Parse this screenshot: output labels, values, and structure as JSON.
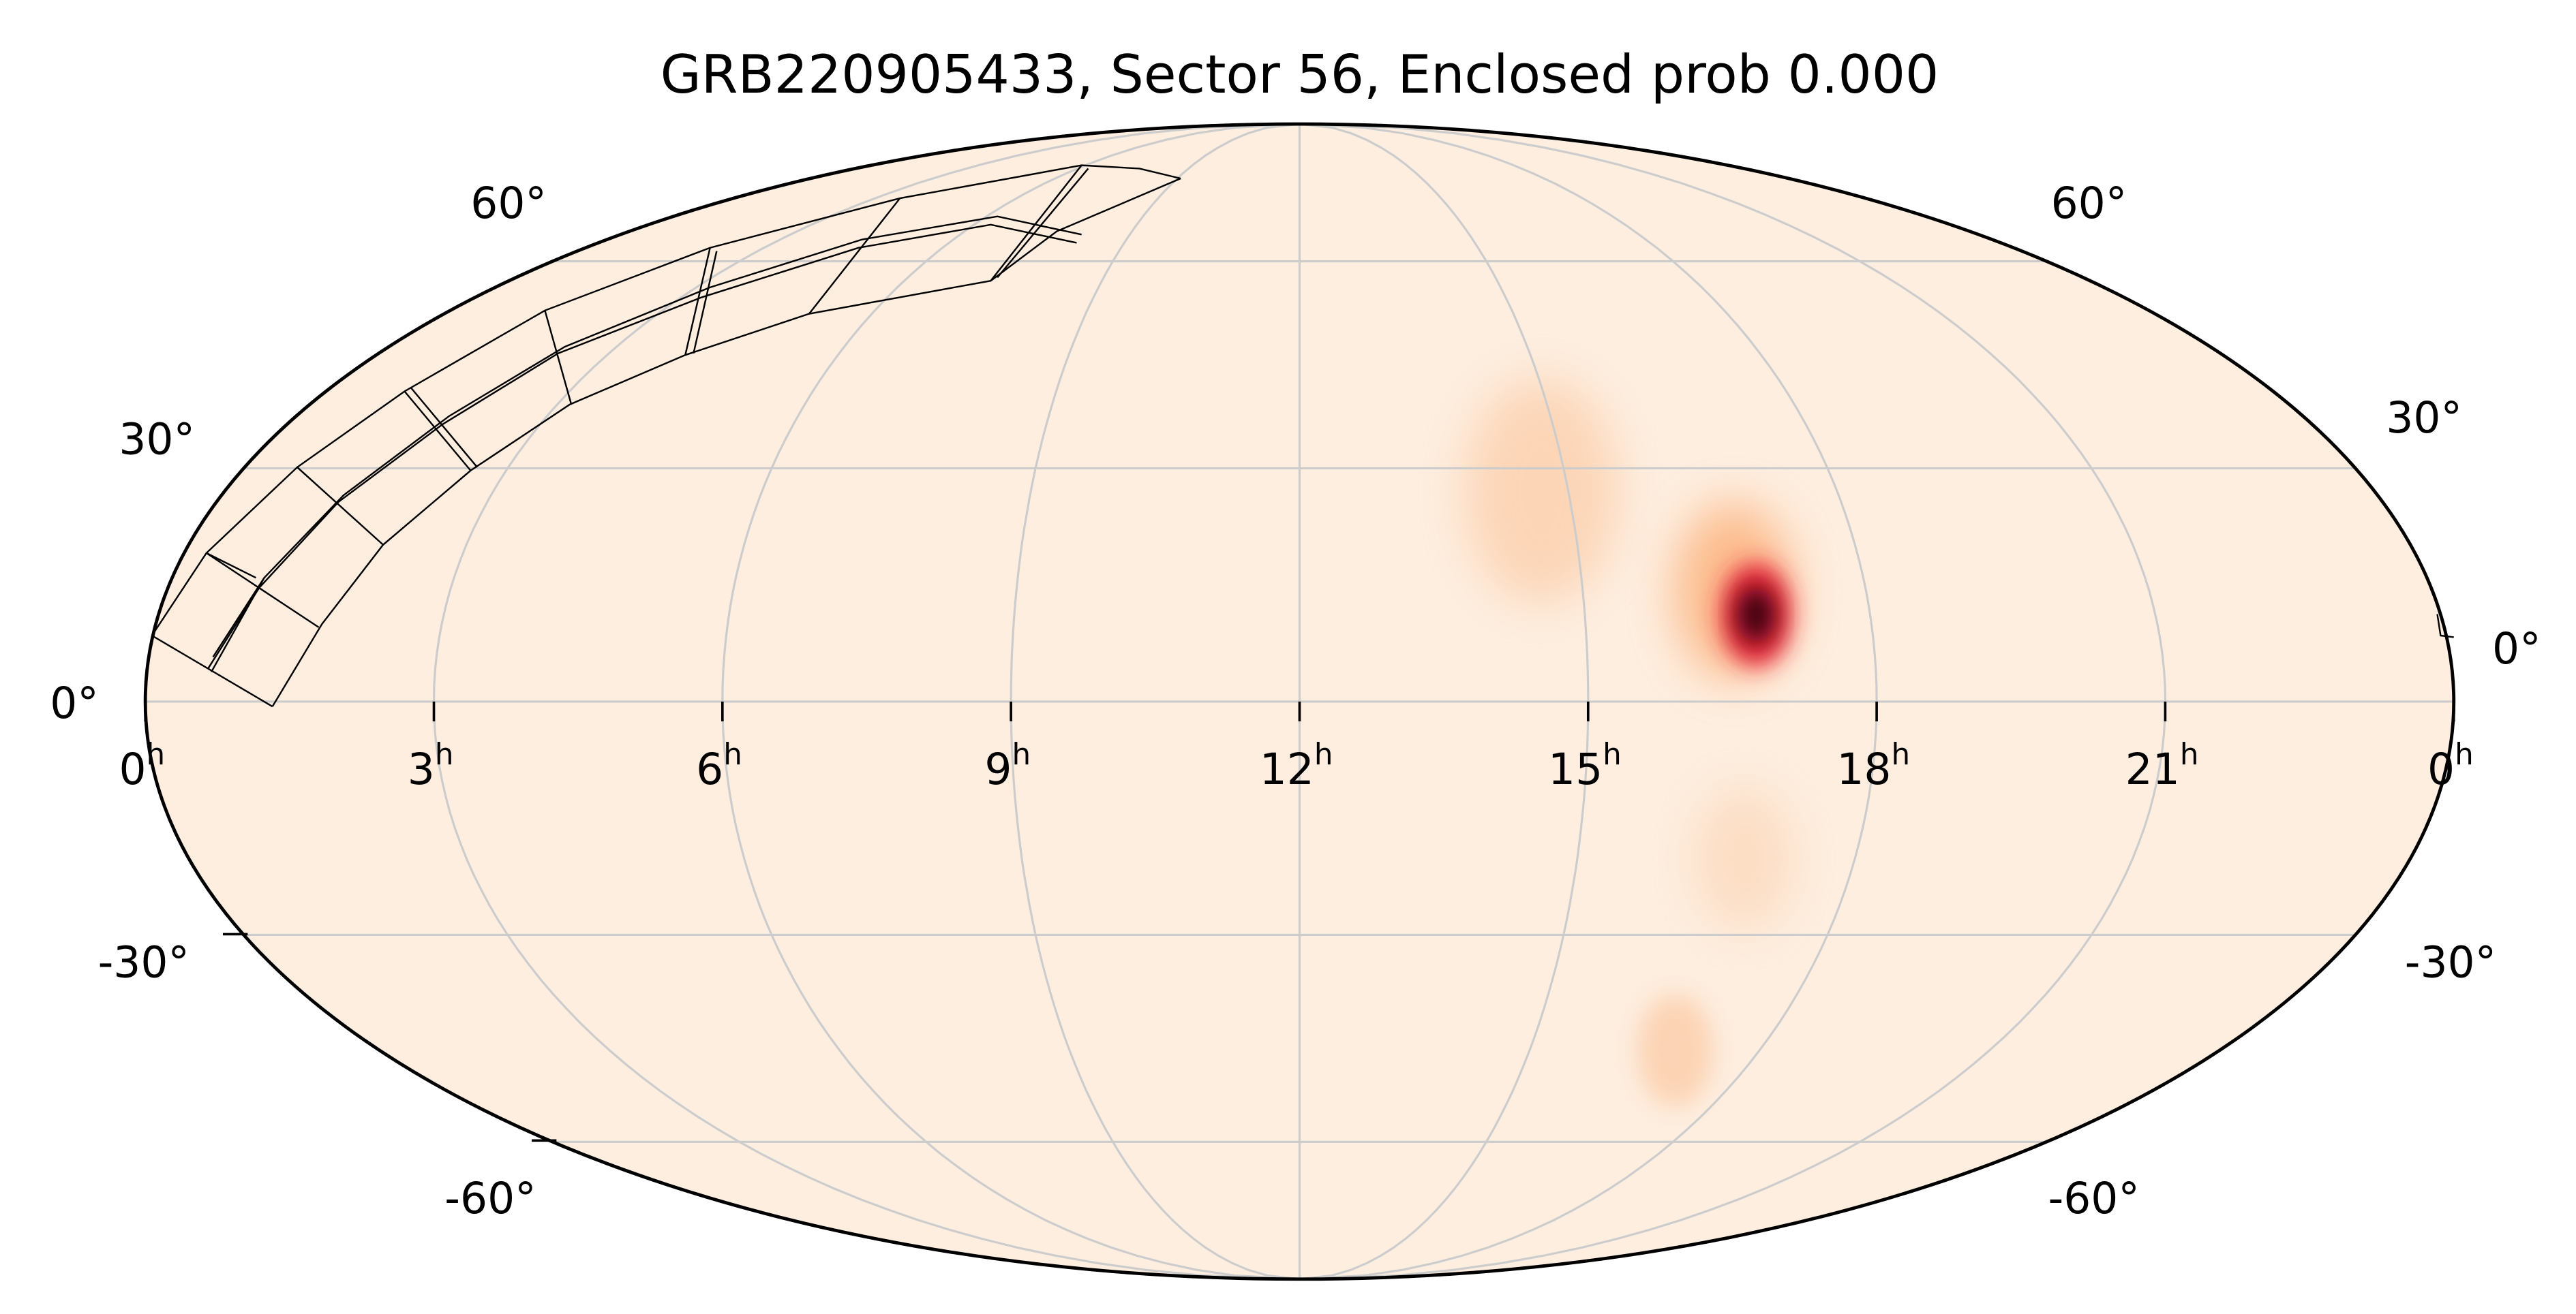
{
  "chart_data": {
    "type": "heatmap",
    "projection": "mollweide",
    "title": "GRB220905433, Sector 56, Enclosed prob 0.000",
    "ra_ticks": [
      {
        "ra": 24,
        "label": "0",
        "sup": "h"
      },
      {
        "ra": 21,
        "label": "21",
        "sup": "h"
      },
      {
        "ra": 18,
        "label": "18",
        "sup": "h"
      },
      {
        "ra": 15,
        "label": "15",
        "sup": "h"
      },
      {
        "ra": 12,
        "label": "12",
        "sup": "h"
      },
      {
        "ra": 9,
        "label": "9",
        "sup": "h"
      },
      {
        "ra": 6,
        "label": "6",
        "sup": "h"
      },
      {
        "ra": 3,
        "label": "3",
        "sup": "h"
      },
      {
        "ra": 0,
        "label": "0",
        "sup": "h"
      }
    ],
    "dec_ticks": [
      {
        "dec": 60,
        "label": "60°"
      },
      {
        "dec": 30,
        "label": "30°"
      },
      {
        "dec": 0,
        "label": "0°"
      },
      {
        "dec": -30,
        "label": "-30°"
      },
      {
        "dec": -60,
        "label": "-60°"
      }
    ],
    "grid": true,
    "background_color": "#fdeee0",
    "probability_blobs": [
      {
        "ra": 14.7,
        "dec": 27,
        "sigma_deg": 14,
        "intensity": 0.12,
        "color": "#fbb37e"
      },
      {
        "ra": 16.8,
        "dec": -20,
        "sigma_deg": 9,
        "intensity": 0.1,
        "color": "#fbc49a"
      },
      {
        "ra": 16.9,
        "dec": -46,
        "sigma_deg": 7,
        "intensity": 0.15,
        "color": "#fbb47f"
      },
      {
        "ra": 16.6,
        "dec": 14,
        "sigma_deg": 11,
        "intensity": 0.35,
        "color": "#fca05f"
      },
      {
        "ra": 16.8,
        "dec": 11,
        "sigma_deg": 6.5,
        "intensity": 0.7,
        "color": "#e8283c"
      },
      {
        "ra": 16.8,
        "dec": 11,
        "sigma_deg": 3.5,
        "intensity": 1.0,
        "color": "#3b0010"
      }
    ],
    "colormap": [
      "#fdeee0",
      "#fca05f",
      "#e8283c",
      "#b0004a",
      "#3b0010"
    ],
    "footprint": "TESS Sector 56 camera/CCD tiles"
  }
}
